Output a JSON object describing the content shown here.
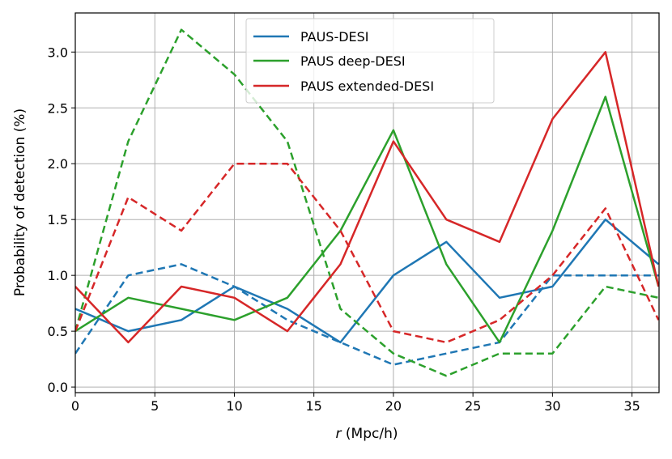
{
  "chart_data": {
    "type": "line",
    "xlabel_italic": "r",
    "xlabel_rest": " (Mpc/h)",
    "ylabel": "Probability of detection (%)",
    "xlim": [
      0,
      36.7
    ],
    "ylim": [
      -0.05,
      3.35
    ],
    "x_ticks": [
      0,
      5,
      10,
      15,
      20,
      25,
      30,
      35
    ],
    "y_ticks": [
      0.0,
      0.5,
      1.0,
      1.5,
      2.0,
      2.5,
      3.0
    ],
    "x_tick_labels": [
      "0",
      "5",
      "10",
      "15",
      "20",
      "25",
      "30",
      "35"
    ],
    "y_tick_labels": [
      "0.0",
      "0.5",
      "1.0",
      "1.5",
      "2.0",
      "2.5",
      "3.0"
    ],
    "grid": true,
    "legend_position": "top-center",
    "x": [
      0,
      3.33,
      6.67,
      10,
      13.33,
      16.67,
      20,
      23.33,
      26.67,
      30,
      33.33,
      36.67
    ],
    "series": [
      {
        "name": "PAUS-DESI",
        "color": "#1f77b4",
        "solid": [
          0.7,
          0.5,
          0.6,
          0.9,
          0.7,
          0.4,
          1.0,
          1.3,
          0.8,
          0.9,
          1.5,
          1.1
        ],
        "dashed": [
          0.3,
          1.0,
          1.1,
          0.9,
          0.6,
          0.4,
          0.2,
          0.3,
          0.4,
          1.0,
          1.0,
          1.0
        ]
      },
      {
        "name": "PAUS deep-DESI",
        "color": "#2ca02c",
        "solid": [
          0.5,
          0.8,
          0.7,
          0.6,
          0.8,
          1.4,
          2.3,
          1.1,
          0.4,
          1.4,
          2.6,
          0.9
        ],
        "dashed": [
          0.5,
          2.2,
          3.2,
          2.8,
          2.2,
          0.7,
          0.3,
          0.1,
          0.3,
          0.3,
          0.9,
          0.8
        ]
      },
      {
        "name": "PAUS extended-DESI",
        "color": "#d62728",
        "solid": [
          0.9,
          0.4,
          0.9,
          0.8,
          0.5,
          1.1,
          2.2,
          1.5,
          1.3,
          2.4,
          3.0,
          0.9
        ],
        "dashed": [
          0.5,
          1.7,
          1.4,
          2.0,
          2.0,
          1.4,
          0.5,
          0.4,
          0.6,
          1.0,
          1.6,
          0.6
        ]
      }
    ]
  }
}
